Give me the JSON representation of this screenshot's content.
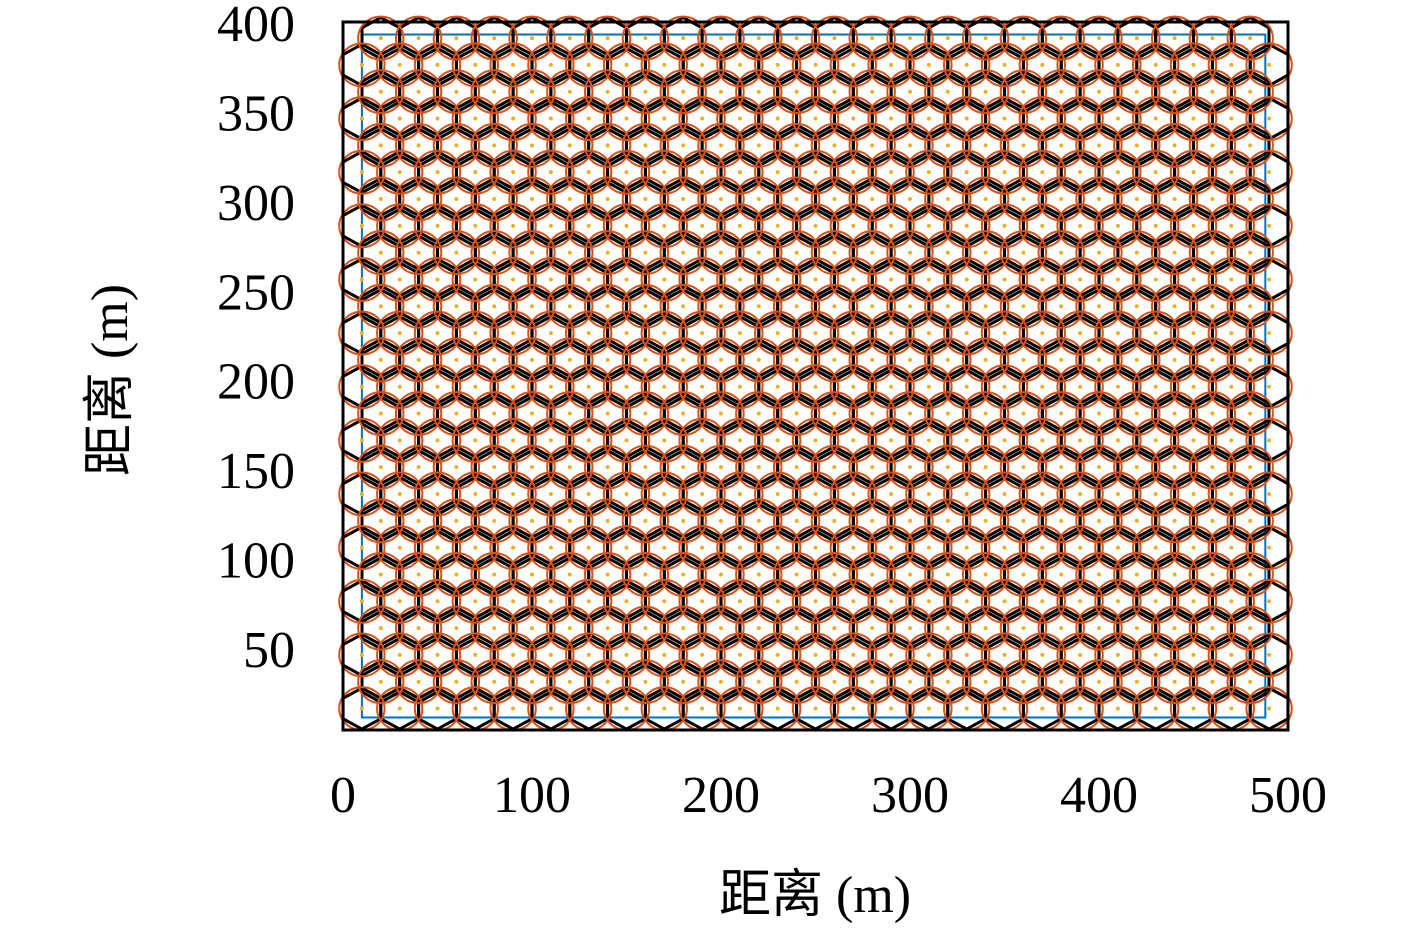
{
  "chart_data": {
    "type": "hexgrid",
    "xlabel": "距离 (m)",
    "ylabel": "距离 (m)",
    "xlim": [
      0,
      500
    ],
    "ylim": [
      8,
      404
    ],
    "xticks": [
      0,
      100,
      200,
      300,
      400,
      500
    ],
    "yticks": [
      50,
      100,
      150,
      200,
      250,
      300,
      350,
      400
    ],
    "row_y": [
      20,
      35,
      50,
      65,
      80,
      95,
      110,
      125,
      140,
      155,
      170,
      185,
      200,
      215,
      230,
      245,
      260,
      275,
      290,
      305,
      320,
      335,
      350,
      365,
      380,
      395
    ],
    "even_row_x": [
      10,
      30,
      50,
      70,
      90,
      110,
      130,
      150,
      170,
      190,
      210,
      230,
      250,
      270,
      290,
      310,
      330,
      350,
      370,
      390,
      410,
      430,
      450,
      470,
      490
    ],
    "odd_row_x": [
      20,
      40,
      60,
      80,
      100,
      120,
      140,
      160,
      180,
      200,
      220,
      240,
      260,
      280,
      300,
      320,
      340,
      360,
      380,
      400,
      420,
      440,
      460,
      480
    ],
    "hex_radius": 11.5,
    "circle_radius": 12,
    "hex_color": "#000000",
    "circle_color": "#d95319",
    "point_color": "#edb120",
    "area": {
      "x": [
        10,
        488
      ],
      "y": [
        15,
        397
      ]
    },
    "area_color": "#0072bd"
  }
}
